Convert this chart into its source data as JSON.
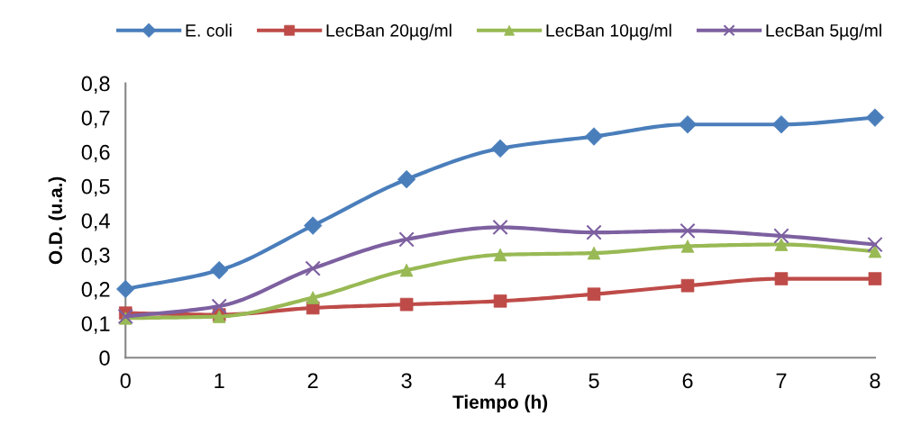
{
  "chart_data": {
    "type": "line",
    "xlabel": "Tiempo (h)",
    "ylabel": "O.D. (u.a.)",
    "x": [
      0,
      1,
      2,
      3,
      4,
      5,
      6,
      7,
      8
    ],
    "series": [
      {
        "name": "E. coli",
        "color": "#4a7ebb",
        "marker": "diamond",
        "values": [
          0.2,
          0.255,
          0.385,
          0.52,
          0.61,
          0.645,
          0.68,
          0.68,
          0.7
        ]
      },
      {
        "name": "LecBan 20µg/ml",
        "color": "#be4b48",
        "marker": "square",
        "values": [
          0.13,
          0.125,
          0.145,
          0.155,
          0.165,
          0.185,
          0.21,
          0.23,
          0.23
        ]
      },
      {
        "name": "LecBan 10µg/ml",
        "color": "#98b954",
        "marker": "triangle",
        "values": [
          0.115,
          0.12,
          0.175,
          0.255,
          0.3,
          0.305,
          0.325,
          0.33,
          0.31
        ]
      },
      {
        "name": "LecBan 5µg/ml",
        "color": "#7d60a0",
        "marker": "cross",
        "values": [
          0.12,
          0.15,
          0.26,
          0.345,
          0.38,
          0.365,
          0.37,
          0.355,
          0.33
        ]
      }
    ],
    "xlim": [
      0,
      8
    ],
    "xticks": [
      0,
      1,
      2,
      3,
      4,
      5,
      6,
      7,
      8
    ],
    "ylim": [
      0,
      0.8
    ],
    "yticks": [
      0,
      {
        "value": 0.1,
        "label": "0,1"
      },
      {
        "value": 0.2,
        "label": "0,2"
      },
      {
        "value": 0.3,
        "label": "0,3"
      },
      {
        "value": 0.4,
        "label": "0,4"
      },
      {
        "value": 0.5,
        "label": "0,5"
      },
      {
        "value": 0.6,
        "label": "0,6"
      },
      {
        "value": 0.7,
        "label": "0,7"
      },
      {
        "value": 0.8,
        "label": "0,8"
      }
    ],
    "grid": false,
    "legend": "top",
    "line_style": "solid"
  }
}
